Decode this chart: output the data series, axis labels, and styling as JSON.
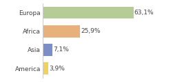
{
  "categories": [
    "Europa",
    "Africa",
    "Asia",
    "America"
  ],
  "values": [
    63.1,
    25.9,
    7.1,
    3.9
  ],
  "labels": [
    "63,1%",
    "25,9%",
    "7,1%",
    "3,9%"
  ],
  "bar_colors": [
    "#b5cc96",
    "#e8b07a",
    "#7b8ec8",
    "#f0d060"
  ],
  "background_color": "#ffffff",
  "plot_bg_color": "#ffffff",
  "xlim": [
    0,
    75
  ],
  "label_fontsize": 6.5,
  "category_fontsize": 6.5,
  "bar_height": 0.65
}
